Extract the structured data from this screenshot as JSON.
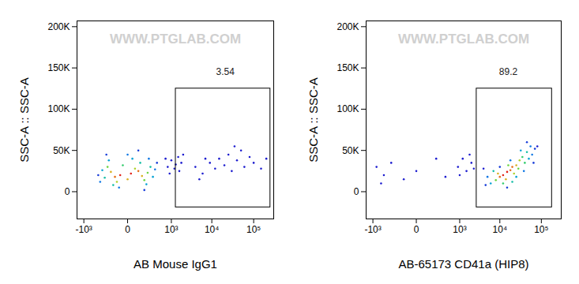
{
  "chart_data": [
    {
      "type": "scatter",
      "xlabel": "AB Mouse IgG1",
      "ylabel": "SSC-A :: SSC-A",
      "watermark": "WWW.PTGLAB.COM",
      "log": "x",
      "xlim": [
        -1500,
        300000
      ],
      "ylim": [
        -33000,
        207000
      ],
      "xticks": [
        {
          "value": -1000,
          "label": "-10³"
        },
        0,
        {
          "value": 1000,
          "label": "10³"
        },
        {
          "value": 10000,
          "label": "10⁴"
        },
        {
          "value": 100000,
          "label": "10⁵"
        }
      ],
      "yticks": [
        0,
        {
          "value": 50000,
          "label": "50K"
        },
        {
          "value": 100000,
          "label": "100K"
        },
        {
          "value": 150000,
          "label": "150K"
        },
        {
          "value": 200000,
          "label": "200K"
        }
      ],
      "x": [
        -50,
        20,
        -100,
        80,
        0,
        -150,
        120,
        50,
        -80,
        150,
        -200,
        200,
        -30,
        100,
        -120,
        250,
        -250,
        30,
        -180,
        180,
        -300,
        300,
        0,
        -60,
        220,
        -350,
        350,
        80,
        -220,
        400,
        -400,
        150,
        800,
        1000,
        1200,
        1500,
        1800,
        900,
        2000,
        1300,
        1600,
        700,
        4000,
        6000,
        9000,
        12000,
        15000,
        20000,
        25000,
        30000,
        40000,
        50000,
        60000,
        80000,
        100000,
        150000,
        5000,
        35000,
        200000,
        7000
      ],
      "y": [
        20000,
        22000,
        18000,
        25000,
        15000,
        24000,
        19000,
        28000,
        12000,
        14000,
        30000,
        23000,
        32000,
        35000,
        8000,
        30000,
        17000,
        40000,
        38000,
        9000,
        26000,
        18000,
        45000,
        5000,
        40000,
        12000,
        27000,
        50000,
        45000,
        35000,
        20000,
        2000,
        30000,
        38000,
        28000,
        42000,
        35000,
        22000,
        45000,
        33000,
        25000,
        40000,
        30000,
        22000,
        35000,
        28000,
        40000,
        32000,
        45000,
        25000,
        38000,
        50000,
        30000,
        42000,
        35000,
        28000,
        15000,
        55000,
        40000,
        40000
      ],
      "density": [
        1,
        1,
        0.9,
        0.9,
        0.8,
        0.8,
        0.8,
        0.7,
        0.7,
        0.6,
        0.6,
        0.6,
        0.5,
        0.4,
        0.4,
        0.4,
        0.4,
        0.3,
        0.3,
        0.3,
        0.3,
        0.3,
        0.2,
        0.2,
        0.2,
        0.2,
        0.2,
        0.1,
        0.1,
        0.1,
        0.1,
        0.1,
        0.05,
        0.05,
        0.05,
        0.05,
        0.05,
        0.05,
        0.05,
        0.05,
        0.05,
        0.05,
        0.05,
        0.05,
        0.05,
        0.05,
        0.05,
        0.05,
        0.05,
        0.05,
        0.05,
        0.05,
        0.05,
        0.05,
        0.05,
        0.05,
        0.05,
        0.05,
        0.05,
        0.05
      ],
      "gate": {
        "x": [
          1300,
          250000
        ],
        "y": [
          -19000,
          125000
        ]
      },
      "annotations": [
        {
          "text": "3.54",
          "x": 21000,
          "y": 145000
        }
      ]
    },
    {
      "type": "scatter",
      "xlabel": "AB-65173 CD41a (HIP8)",
      "ylabel": "SSC-A :: SSC-A",
      "watermark": "WWW.PTGLAB.COM",
      "log": "x",
      "xlim": [
        -1500,
        300000
      ],
      "ylim": [
        -33000,
        207000
      ],
      "xticks": [
        {
          "value": -1000,
          "label": "-10³"
        },
        0,
        {
          "value": 1000,
          "label": "10³"
        },
        {
          "value": 10000,
          "label": "10⁴"
        },
        {
          "value": 100000,
          "label": "10⁵"
        }
      ],
      "yticks": [
        0,
        {
          "value": 50000,
          "label": "50K"
        },
        {
          "value": 100000,
          "label": "100K"
        },
        {
          "value": 150000,
          "label": "150K"
        },
        {
          "value": 200000,
          "label": "200K"
        }
      ],
      "x": [
        12000,
        15000,
        18000,
        10000,
        20000,
        14000,
        25000,
        9000,
        22000,
        30000,
        8000,
        16000,
        28000,
        35000,
        12000,
        40000,
        7000,
        45000,
        20000,
        32000,
        50000,
        6000,
        25000,
        55000,
        60000,
        5000,
        18000,
        38000,
        45000,
        70000,
        4500,
        10000,
        65000,
        15000,
        80000,
        4000,
        -800,
        -500,
        -300,
        -100,
        0,
        200,
        400,
        -600,
        900,
        1200,
        1500,
        1800,
        2000,
        2300,
        1000
      ],
      "y": [
        20000,
        24000,
        26000,
        18000,
        30000,
        15000,
        32000,
        22000,
        22000,
        38000,
        14000,
        32000,
        28000,
        42000,
        10000,
        35000,
        25000,
        48000,
        12000,
        50000,
        40000,
        10000,
        18000,
        55000,
        45000,
        18000,
        38000,
        25000,
        60000,
        52000,
        8000,
        30000,
        35000,
        5000,
        55000,
        28000,
        30000,
        20000,
        35000,
        15000,
        25000,
        40000,
        18000,
        10000,
        30000,
        40000,
        25000,
        45000,
        35000,
        28000,
        20000
      ],
      "density": [
        1,
        1,
        0.9,
        0.9,
        0.9,
        0.8,
        0.8,
        0.8,
        0.7,
        0.7,
        0.6,
        0.6,
        0.6,
        0.5,
        0.5,
        0.5,
        0.4,
        0.4,
        0.4,
        0.3,
        0.3,
        0.3,
        0.3,
        0.2,
        0.2,
        0.2,
        0.2,
        0.2,
        0.1,
        0.1,
        0.1,
        0.1,
        0.1,
        0.1,
        0.05,
        0.05,
        0.05,
        0.05,
        0.05,
        0.05,
        0.05,
        0.05,
        0.05,
        0.05,
        0.05,
        0.05,
        0.05,
        0.05,
        0.05,
        0.05,
        0.05
      ],
      "gate": {
        "x": [
          2700,
          180000
        ],
        "y": [
          -19000,
          125000
        ]
      },
      "annotations": [
        {
          "text": "89.2",
          "x": 16000,
          "y": 145000
        }
      ]
    }
  ]
}
